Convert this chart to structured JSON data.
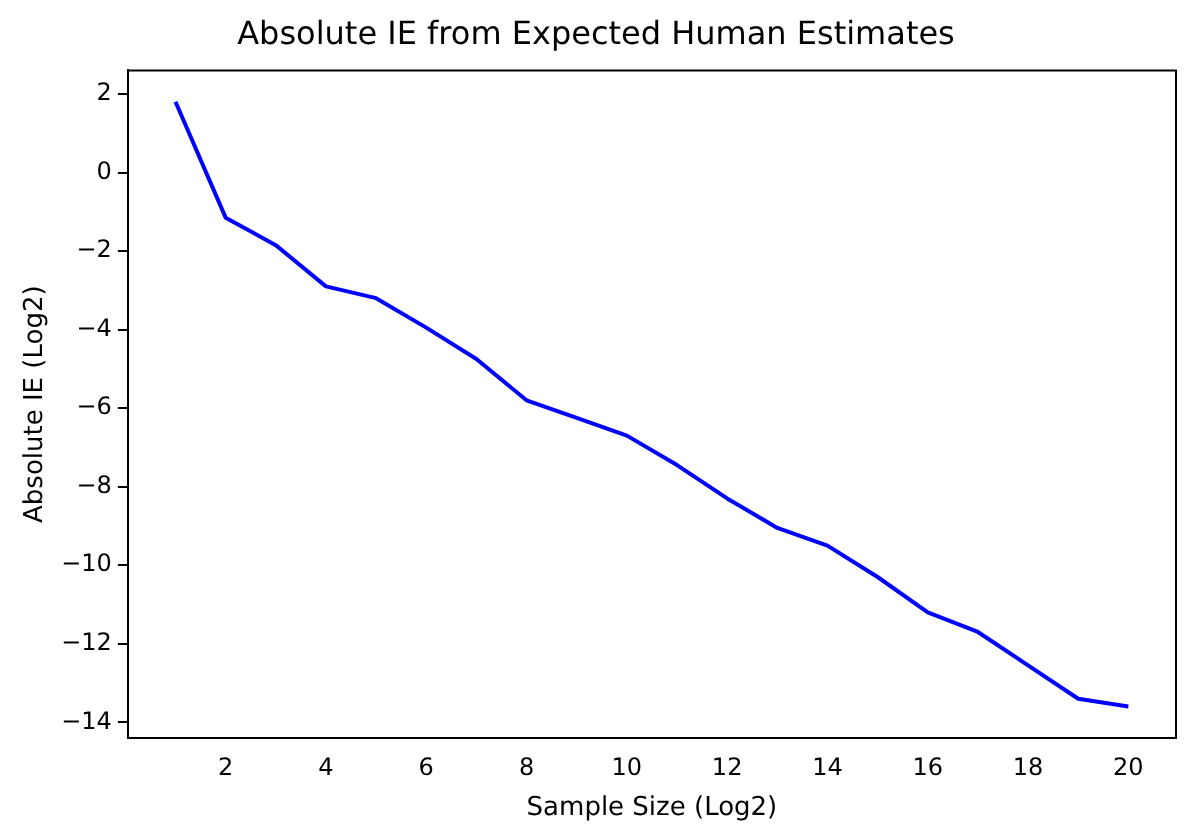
{
  "chart_data": {
    "type": "line",
    "title": "Absolute IE from Expected Human Estimates",
    "xlabel": "Sample Size (Log2)",
    "ylabel": "Absolute IE (Log2)",
    "x": [
      1,
      2,
      3,
      4,
      5,
      6,
      7,
      8,
      9,
      10,
      11,
      12,
      13,
      14,
      15,
      16,
      17,
      18,
      19,
      20
    ],
    "series": [
      {
        "color": "#0000ff",
        "values": [
          1.8,
          -1.15,
          -1.85,
          -2.9,
          -3.2,
          -3.95,
          -4.75,
          -5.8,
          -6.25,
          -6.7,
          -7.45,
          -8.3,
          -9.05,
          -9.5,
          -10.3,
          -11.2,
          -11.7,
          -12.55,
          -13.4,
          -13.6
        ]
      }
    ],
    "xlim": [
      0.05,
      20.95
    ],
    "xticks": [
      2,
      4,
      6,
      8,
      10,
      12,
      14,
      16,
      18,
      20
    ],
    "ylim": [
      -14.4,
      2.6
    ],
    "yticks": [
      -14,
      -12,
      -10,
      -8,
      -6,
      -4,
      -2,
      0,
      2
    ],
    "grid": false,
    "legend": false,
    "marker": "none",
    "line_style": "solid"
  }
}
